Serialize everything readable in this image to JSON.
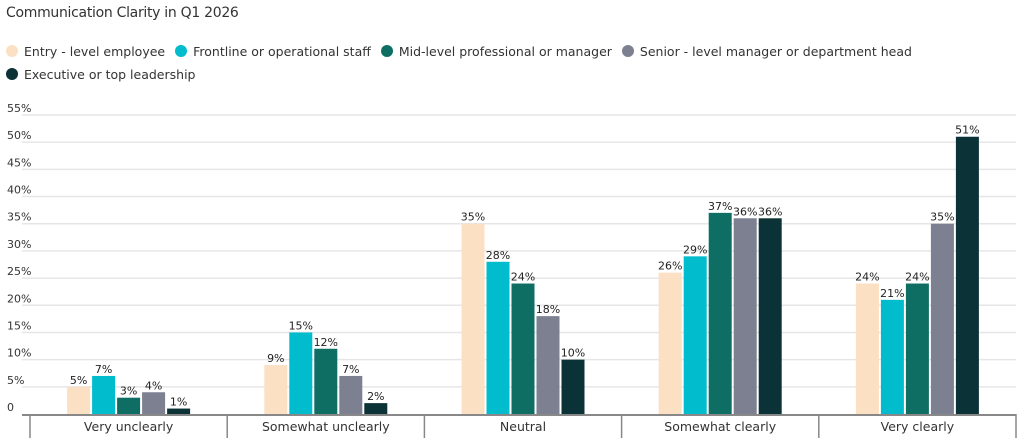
{
  "chart_data": {
    "type": "bar",
    "title": "Communication Clarity in Q1 2026",
    "xlabel": "",
    "ylabel": "",
    "ylim": [
      0,
      55
    ],
    "yticks": [
      "0",
      "5%",
      "10%",
      "15%",
      "20%",
      "25%",
      "30%",
      "35%",
      "40%",
      "45%",
      "50%",
      "55%"
    ],
    "grid": true,
    "legend_position": "top-left",
    "categories": [
      "Very unclearly",
      "Somewhat unclearly",
      "Neutral",
      "Somewhat clearly",
      "Very clearly"
    ],
    "series": [
      {
        "name": "Entry - level employee",
        "color": "#fbe0c3",
        "values": [
          5,
          9,
          35,
          26,
          24
        ]
      },
      {
        "name": "Frontline or operational staff",
        "color": "#00bccc",
        "values": [
          7,
          15,
          28,
          29,
          21
        ]
      },
      {
        "name": "Mid-level professional or manager",
        "color": "#0e6e64",
        "values": [
          3,
          12,
          24,
          37,
          24
        ]
      },
      {
        "name": "Senior - level manager or department head",
        "color": "#7c8090",
        "values": [
          4,
          7,
          18,
          36,
          35
        ]
      },
      {
        "name": "Executive or top leadership",
        "color": "#0b3236",
        "values": [
          1,
          2,
          10,
          36,
          51
        ]
      }
    ]
  }
}
